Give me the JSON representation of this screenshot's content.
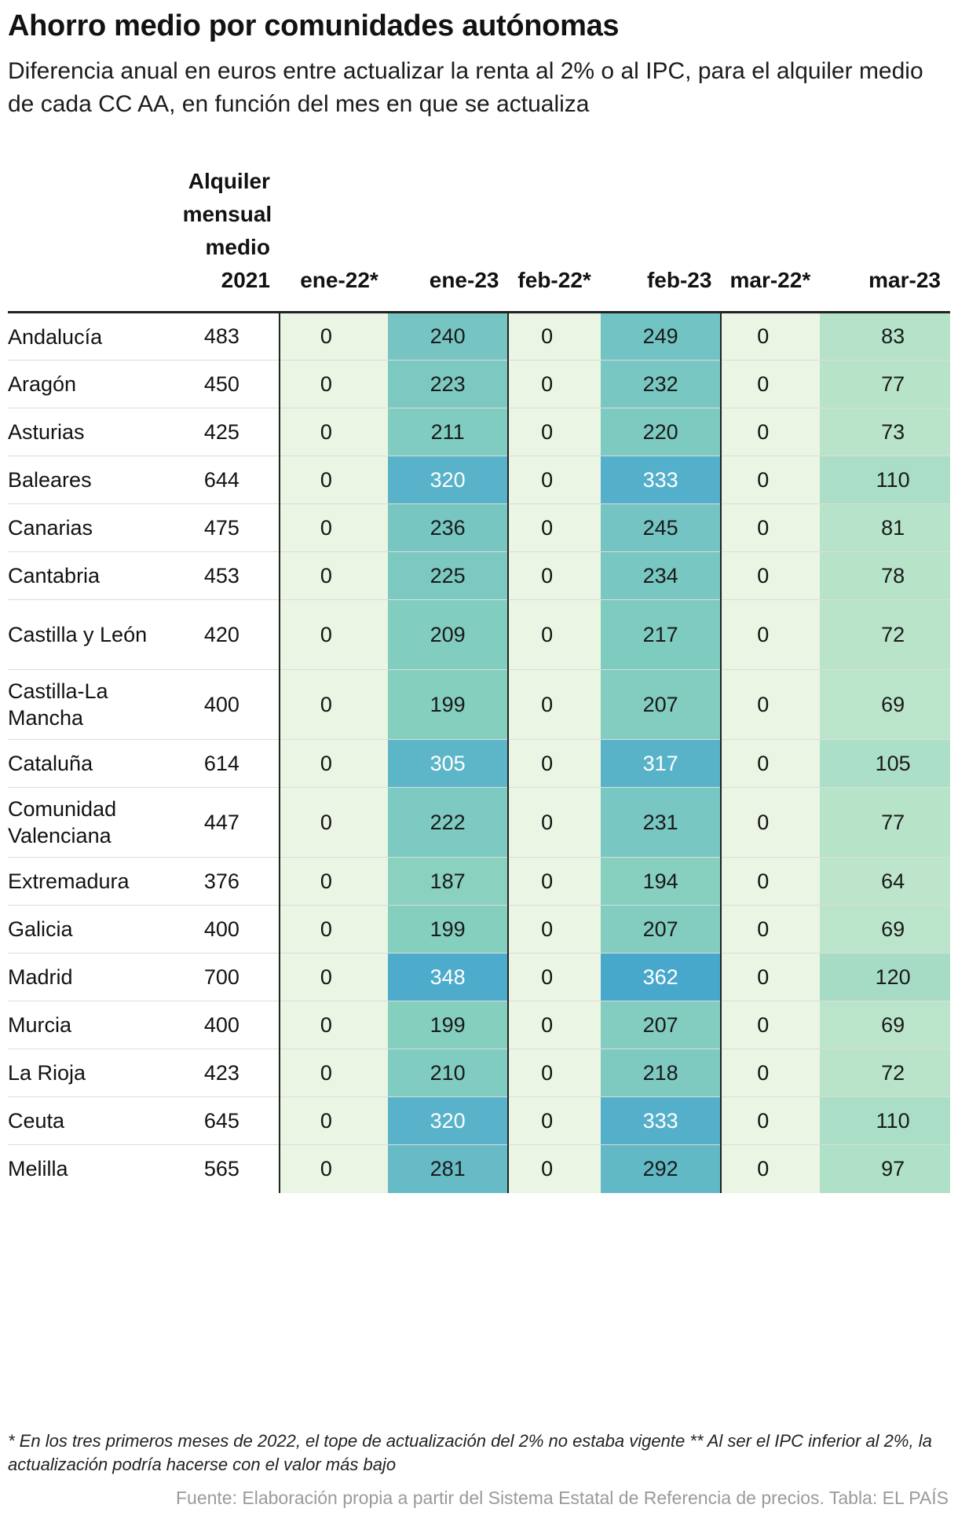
{
  "title": "Ahorro medio por comunidades autónomas",
  "subtitle": "Diferencia anual en euros entre actualizar la renta al 2% o al IPC, para el alquiler medio de cada CC AA, en función del mes en que se actualiza",
  "footnote": "* En los tres primeros meses de 2022, el tope de actualización del 2% no estaba vigente ** Al ser el IPC inferior al 2%, la actualización podría hacerse con el valor más bajo",
  "source": "Fuente: Elaboración propia a partir del Sistema Estatal de Referencia de precios. Tabla: EL PAÍS",
  "colors": {
    "zero_column_bg": "#ebf5e3",
    "scale_low": "#d7f0d0",
    "scale_mid": "#85cfbf",
    "scale_high": "#48a8cc",
    "text_dark": "#1a1a1a",
    "text_light": "#ffffff"
  },
  "chart_data": {
    "type": "table",
    "columns": [
      "",
      "Alquiler mensual medio 2021",
      "ene-22*",
      "ene-23",
      "feb-22*",
      "feb-23",
      "mar-22*",
      "mar-23"
    ],
    "rows": [
      {
        "name": "Andalucía",
        "rent": "483",
        "values": [
          0,
          240,
          0,
          249,
          0,
          83
        ]
      },
      {
        "name": "Aragón",
        "rent": "450",
        "values": [
          0,
          223,
          0,
          232,
          0,
          77
        ]
      },
      {
        "name": "Asturias",
        "rent": "425",
        "values": [
          0,
          211,
          0,
          220,
          0,
          73
        ]
      },
      {
        "name": "Baleares",
        "rent": "644",
        "values": [
          0,
          320,
          0,
          333,
          0,
          110
        ]
      },
      {
        "name": "Canarias",
        "rent": "475",
        "values": [
          0,
          236,
          0,
          245,
          0,
          81
        ]
      },
      {
        "name": "Cantabria",
        "rent": "453",
        "values": [
          0,
          225,
          0,
          234,
          0,
          78
        ]
      },
      {
        "name": "Castilla y León",
        "rent": "420",
        "values": [
          0,
          209,
          0,
          217,
          0,
          72
        ]
      },
      {
        "name": "Castilla-La Mancha",
        "rent": "400",
        "values": [
          0,
          199,
          0,
          207,
          0,
          69
        ]
      },
      {
        "name": "Cataluña",
        "rent": "614",
        "values": [
          0,
          305,
          0,
          317,
          0,
          105
        ]
      },
      {
        "name": "Comunidad Valenciana",
        "rent": "447",
        "values": [
          0,
          222,
          0,
          231,
          0,
          77
        ]
      },
      {
        "name": "Extremadura",
        "rent": "376",
        "values": [
          0,
          187,
          0,
          194,
          0,
          64
        ]
      },
      {
        "name": "Galicia",
        "rent": "400",
        "values": [
          0,
          199,
          0,
          207,
          0,
          69
        ]
      },
      {
        "name": "Madrid",
        "rent": "700",
        "values": [
          0,
          348,
          0,
          362,
          0,
          120
        ]
      },
      {
        "name": "Murcia",
        "rent": "400",
        "values": [
          0,
          199,
          0,
          207,
          0,
          69
        ]
      },
      {
        "name": "La Rioja",
        "rent": "423",
        "values": [
          0,
          210,
          0,
          218,
          0,
          72
        ]
      },
      {
        "name": "Ceuta",
        "rent": "645",
        "values": [
          0,
          320,
          0,
          333,
          0,
          110
        ]
      },
      {
        "name": "Melilla",
        "rent": "565",
        "values": [
          0,
          281,
          0,
          292,
          0,
          97
        ]
      }
    ]
  }
}
